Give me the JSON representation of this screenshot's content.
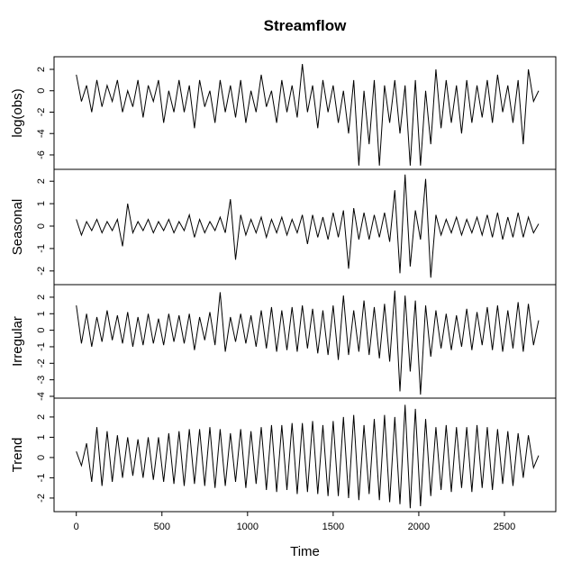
{
  "chart_data": [
    {
      "type": "line",
      "title": "Streamflow",
      "ylabel": "log(obs)",
      "color": "#000000",
      "xlim": [
        -130,
        2800
      ],
      "ylim": [
        -7.35,
        3.18
      ],
      "yticks": [
        -6,
        -4,
        -2,
        0,
        2
      ],
      "x": [
        0,
        30,
        60,
        90,
        120,
        150,
        180,
        210,
        240,
        270,
        300,
        330,
        360,
        390,
        420,
        450,
        480,
        510,
        540,
        570,
        600,
        630,
        660,
        690,
        720,
        750,
        780,
        810,
        840,
        870,
        900,
        930,
        960,
        990,
        1020,
        1050,
        1080,
        1110,
        1140,
        1170,
        1200,
        1230,
        1260,
        1290,
        1320,
        1350,
        1380,
        1410,
        1440,
        1470,
        1500,
        1530,
        1560,
        1590,
        1620,
        1650,
        1680,
        1710,
        1740,
        1770,
        1800,
        1830,
        1860,
        1890,
        1920,
        1950,
        1980,
        2010,
        2040,
        2070,
        2100,
        2130,
        2160,
        2190,
        2220,
        2250,
        2280,
        2310,
        2340,
        2370,
        2400,
        2430,
        2460,
        2490,
        2520,
        2550,
        2580,
        2610,
        2640,
        2670,
        2700
      ],
      "values": [
        1.5,
        -1,
        0.5,
        -2,
        1,
        -1.5,
        0.5,
        -1,
        1,
        -2,
        0,
        -1.5,
        1,
        -2.5,
        0.5,
        -1,
        1,
        -3,
        0,
        -2,
        1,
        -2,
        0.5,
        -3.5,
        1,
        -1.5,
        0,
        -3,
        1,
        -2,
        0.5,
        -2.5,
        1,
        -3,
        0,
        -2,
        1.5,
        -1.5,
        0,
        -3,
        1,
        -2,
        0.5,
        -2.5,
        2.5,
        -2,
        0.5,
        -3.5,
        1,
        -2,
        0.5,
        -3,
        0,
        -4,
        1,
        -7,
        0,
        -5,
        1,
        -7,
        0.5,
        -3,
        1,
        -4,
        0.5,
        -7,
        1,
        -7,
        0,
        -5,
        2,
        -3.5,
        1,
        -3,
        0.5,
        -4,
        1,
        -3,
        0.5,
        -2.5,
        1,
        -3,
        1.5,
        -2,
        0.5,
        -3,
        1,
        -5,
        2,
        -1,
        0
      ]
    },
    {
      "type": "line",
      "ylabel": "Seasonal",
      "color": "#000000",
      "xlim": [
        -130,
        2800
      ],
      "ylim": [
        -2.61,
        2.53
      ],
      "yticks": [
        -2,
        -1,
        0,
        1,
        2
      ],
      "x": [
        0,
        30,
        60,
        90,
        120,
        150,
        180,
        210,
        240,
        270,
        300,
        330,
        360,
        390,
        420,
        450,
        480,
        510,
        540,
        570,
        600,
        630,
        660,
        690,
        720,
        750,
        780,
        810,
        840,
        870,
        900,
        930,
        960,
        990,
        1020,
        1050,
        1080,
        1110,
        1140,
        1170,
        1200,
        1230,
        1260,
        1290,
        1320,
        1350,
        1380,
        1410,
        1440,
        1470,
        1500,
        1530,
        1560,
        1590,
        1620,
        1650,
        1680,
        1710,
        1740,
        1770,
        1800,
        1830,
        1860,
        1890,
        1920,
        1950,
        1980,
        2010,
        2040,
        2070,
        2100,
        2130,
        2160,
        2190,
        2220,
        2250,
        2280,
        2310,
        2340,
        2370,
        2400,
        2430,
        2460,
        2490,
        2520,
        2550,
        2580,
        2610,
        2640,
        2670,
        2700
      ],
      "values": [
        0.3,
        -0.4,
        0.2,
        -0.2,
        0.3,
        -0.3,
        0.2,
        -0.2,
        0.3,
        -0.9,
        1.0,
        -0.3,
        0.2,
        -0.2,
        0.3,
        -0.3,
        0.2,
        -0.2,
        0.3,
        -0.3,
        0.2,
        -0.2,
        0.5,
        -0.5,
        0.3,
        -0.3,
        0.2,
        -0.2,
        0.4,
        -0.3,
        1.2,
        -1.5,
        0.5,
        -0.4,
        0.3,
        -0.3,
        0.4,
        -0.5,
        0.3,
        -0.3,
        0.4,
        -0.4,
        0.3,
        -0.3,
        0.5,
        -0.8,
        0.5,
        -0.5,
        0.4,
        -0.6,
        0.6,
        -0.5,
        0.7,
        -1.9,
        0.8,
        -0.6,
        0.6,
        -0.6,
        0.5,
        -0.5,
        0.6,
        -0.7,
        1.6,
        -2.1,
        2.3,
        -1.8,
        0.7,
        -0.6,
        2.1,
        -2.3,
        0.5,
        -0.4,
        0.3,
        -0.3,
        0.4,
        -0.4,
        0.3,
        -0.3,
        0.4,
        -0.4,
        0.5,
        -0.5,
        0.6,
        -0.6,
        0.4,
        -0.5,
        0.6,
        -0.5,
        0.4,
        -0.3,
        0.1
      ]
    },
    {
      "type": "line",
      "ylabel": "Irregular",
      "color": "#000000",
      "xlim": [
        -130,
        2800
      ],
      "ylim": [
        -4.11,
        2.76
      ],
      "yticks": [
        -4,
        -3,
        -2,
        -1,
        0,
        1,
        2
      ],
      "x": [
        0,
        30,
        60,
        90,
        120,
        150,
        180,
        210,
        240,
        270,
        300,
        330,
        360,
        390,
        420,
        450,
        480,
        510,
        540,
        570,
        600,
        630,
        660,
        690,
        720,
        750,
        780,
        810,
        840,
        870,
        900,
        930,
        960,
        990,
        1020,
        1050,
        1080,
        1110,
        1140,
        1170,
        1200,
        1230,
        1260,
        1290,
        1320,
        1350,
        1380,
        1410,
        1440,
        1470,
        1500,
        1530,
        1560,
        1590,
        1620,
        1650,
        1680,
        1710,
        1740,
        1770,
        1800,
        1830,
        1860,
        1890,
        1920,
        1950,
        1980,
        2010,
        2040,
        2070,
        2100,
        2130,
        2160,
        2190,
        2220,
        2250,
        2280,
        2310,
        2340,
        2370,
        2400,
        2430,
        2460,
        2490,
        2520,
        2550,
        2580,
        2610,
        2640,
        2670,
        2700
      ],
      "values": [
        1.5,
        -0.8,
        1,
        -1,
        0.8,
        -0.7,
        1.2,
        -0.6,
        0.9,
        -0.8,
        1.1,
        -1,
        0.8,
        -0.9,
        1,
        -0.8,
        0.7,
        -0.9,
        1,
        -0.7,
        0.9,
        -0.8,
        1,
        -1.2,
        0.8,
        -0.6,
        1.1,
        -0.9,
        2.3,
        -1.3,
        0.8,
        -0.7,
        1,
        -0.8,
        0.9,
        -1,
        1.2,
        -1.1,
        1.4,
        -1.3,
        1.2,
        -1.2,
        1.4,
        -1.3,
        1.5,
        -1.1,
        1.3,
        -1.4,
        1.2,
        -1.5,
        1.5,
        -1.8,
        2.1,
        -1.5,
        1.2,
        -1.3,
        1.8,
        -1.5,
        1.4,
        -1.7,
        1.6,
        -1.9,
        2.4,
        -3.7,
        2.1,
        -2.5,
        1.8,
        -3.9,
        1.5,
        -1.6,
        1.2,
        -1.1,
        1,
        -1.2,
        0.9,
        -1,
        1.3,
        -1.2,
        1.1,
        -0.9,
        1.4,
        -1.2,
        1.5,
        -1.3,
        1.2,
        -1.1,
        1.7,
        -1.3,
        1.6,
        -0.9,
        0.6
      ]
    },
    {
      "type": "line",
      "ylabel": "Trend",
      "xlabel": "Time",
      "color": "#000000",
      "xlim": [
        -130,
        2800
      ],
      "xticks": [
        0,
        500,
        1000,
        1500,
        2000,
        2500
      ],
      "ylim": [
        -2.67,
        2.93
      ],
      "yticks": [
        -2,
        -1,
        0,
        1,
        2
      ],
      "x": [
        0,
        30,
        60,
        90,
        120,
        150,
        180,
        210,
        240,
        270,
        300,
        330,
        360,
        390,
        420,
        450,
        480,
        510,
        540,
        570,
        600,
        630,
        660,
        690,
        720,
        750,
        780,
        810,
        840,
        870,
        900,
        930,
        960,
        990,
        1020,
        1050,
        1080,
        1110,
        1140,
        1170,
        1200,
        1230,
        1260,
        1290,
        1320,
        1350,
        1380,
        1410,
        1440,
        1470,
        1500,
        1530,
        1560,
        1590,
        1620,
        1650,
        1680,
        1710,
        1740,
        1770,
        1800,
        1830,
        1860,
        1890,
        1920,
        1950,
        1980,
        2010,
        2040,
        2070,
        2100,
        2130,
        2160,
        2190,
        2220,
        2250,
        2280,
        2310,
        2340,
        2370,
        2400,
        2430,
        2460,
        2490,
        2520,
        2550,
        2580,
        2610,
        2640,
        2670,
        2700
      ],
      "values": [
        0.3,
        -0.4,
        0.7,
        -1.2,
        1.5,
        -1.4,
        1.3,
        -1.2,
        1.1,
        -1.0,
        1.0,
        -0.9,
        0.9,
        -1.0,
        1.0,
        -1.1,
        1.0,
        -1.2,
        1.2,
        -1.3,
        1.3,
        -1.4,
        1.4,
        -1.3,
        1.4,
        -1.4,
        1.5,
        -1.5,
        1.4,
        -1.4,
        1.2,
        -1.2,
        1.4,
        -1.5,
        1.3,
        -1.3,
        1.5,
        -1.6,
        1.6,
        -1.7,
        1.6,
        -1.6,
        1.7,
        -1.8,
        1.7,
        -1.7,
        1.8,
        -1.8,
        1.6,
        -1.9,
        1.8,
        -1.9,
        2.0,
        -2.0,
        2.1,
        -2.1,
        1.6,
        -1.8,
        1.9,
        -2.1,
        2.1,
        -2.2,
        2.0,
        -2.3,
        2.6,
        -2.5,
        2.4,
        -2.4,
        1.9,
        -1.9,
        1.5,
        -1.6,
        1.6,
        -1.7,
        1.5,
        -1.5,
        1.5,
        -1.7,
        1.6,
        -1.5,
        1.5,
        -1.6,
        1.4,
        -1.3,
        1.3,
        -1.4,
        1.2,
        -1.0,
        1.1,
        -0.5,
        0.1
      ]
    }
  ]
}
